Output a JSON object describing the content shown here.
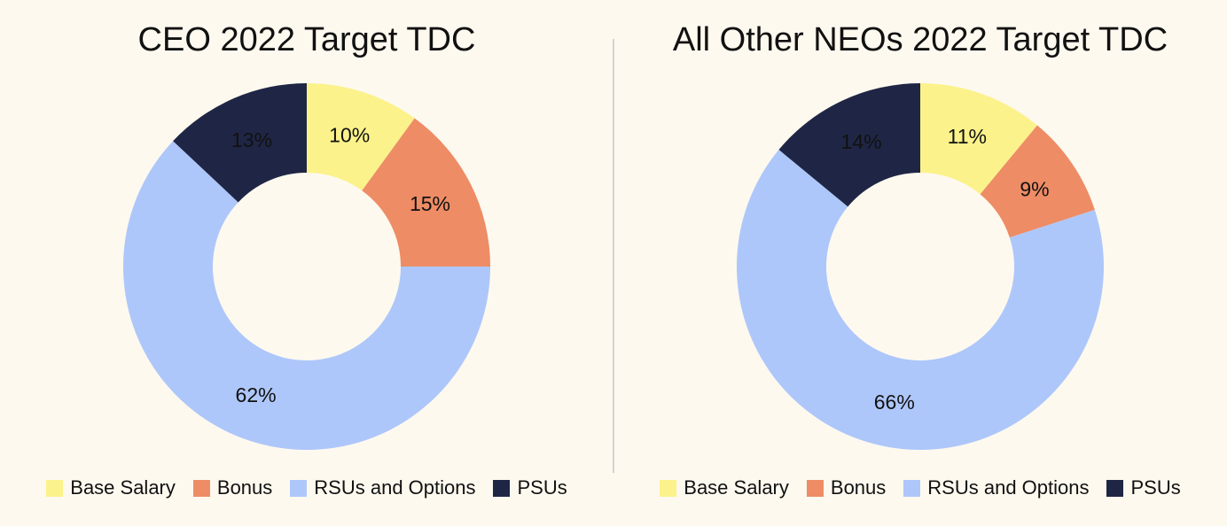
{
  "colors": {
    "background": "#fef9ef",
    "base_salary": "#fbf28b",
    "bonus": "#ee8c65",
    "rsus_options": "#aec7fa",
    "psus": "#1f2645"
  },
  "legend": [
    {
      "label": "Base Salary",
      "color": "#fbf28b"
    },
    {
      "label": "Bonus",
      "color": "#ee8c65"
    },
    {
      "label": "RSUs and Options",
      "color": "#aec7fa"
    },
    {
      "label": "PSUs",
      "color": "#1f2645"
    }
  ],
  "chart_data": [
    {
      "type": "pie",
      "subtype": "donut",
      "title": "CEO 2022 Target TDC",
      "categories": [
        "Base Salary",
        "Bonus",
        "RSUs and Options",
        "PSUs"
      ],
      "values": [
        10,
        15,
        62,
        13
      ],
      "labels": [
        "10%",
        "15%",
        "62%",
        "13%"
      ],
      "colors": [
        "#fbf28b",
        "#ee8c65",
        "#aec7fa",
        "#1f2645"
      ],
      "start_angle": "12 o'clock",
      "direction": "clockwise",
      "legend_position": "bottom"
    },
    {
      "type": "pie",
      "subtype": "donut",
      "title": "All Other NEOs 2022 Target TDC",
      "categories": [
        "Base Salary",
        "Bonus",
        "RSUs and Options",
        "PSUs"
      ],
      "values": [
        11,
        9,
        66,
        14
      ],
      "labels": [
        "11%",
        "9%",
        "66%",
        "14%"
      ],
      "colors": [
        "#fbf28b",
        "#ee8c65",
        "#aec7fa",
        "#1f2645"
      ],
      "start_angle": "12 o'clock",
      "direction": "clockwise",
      "legend_position": "bottom"
    }
  ]
}
